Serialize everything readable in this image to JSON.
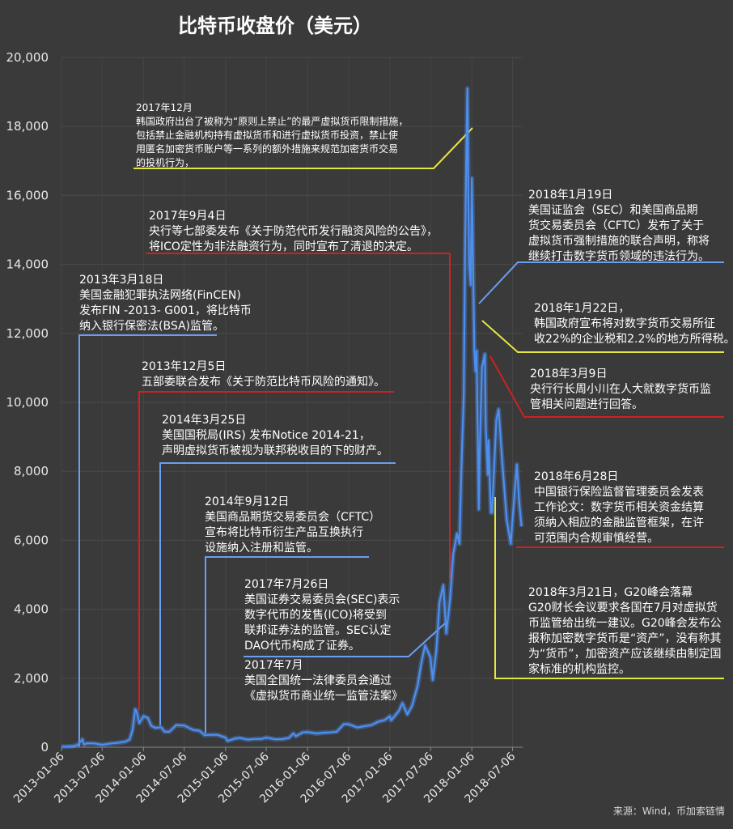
{
  "chart_data": {
    "type": "line",
    "title": "比特币收盘价（美元）",
    "source": "来源：Wind，币加索链情",
    "ylim": [
      0,
      20000
    ],
    "yticks": [
      {
        "value": 0,
        "label": "0"
      },
      {
        "value": 2000,
        "label": "2,000"
      },
      {
        "value": 4000,
        "label": "4,000"
      },
      {
        "value": 6000,
        "label": "6,000"
      },
      {
        "value": 8000,
        "label": "8,000"
      },
      {
        "value": 10000,
        "label": "10,000"
      },
      {
        "value": 12000,
        "label": "12,000"
      },
      {
        "value": 14000,
        "label": "14,000"
      },
      {
        "value": 16000,
        "label": "16,000"
      },
      {
        "value": 18000,
        "label": "18,000"
      },
      {
        "value": 20000,
        "label": "20,000"
      }
    ],
    "xlim": [
      "2013-01-06",
      "2018-08-20"
    ],
    "xticks": [
      "2013-01-06",
      "2013-07-06",
      "2014-01-06",
      "2014-07-06",
      "2015-01-06",
      "2015-07-06",
      "2016-01-06",
      "2016-07-06",
      "2017-01-06",
      "2017-07-06",
      "2018-01-06",
      "2018-07-06"
    ],
    "grid": true,
    "colors": {
      "line": "#4d8ff0",
      "blue": "#6a9ef0",
      "yellow": "#e6e640",
      "red": "#d02020"
    },
    "series": [
      {
        "x": [
          "2013-01-06",
          "2013-02-01",
          "2013-03-01",
          "2013-03-20",
          "2013-04-09",
          "2013-04-16",
          "2013-05-01",
          "2013-06-01",
          "2013-07-06",
          "2013-08-15",
          "2013-09-15",
          "2013-10-15",
          "2013-11-05",
          "2013-11-18",
          "2013-11-30",
          "2013-12-06",
          "2013-12-18",
          "2014-01-06",
          "2014-01-25",
          "2014-02-10",
          "2014-02-28",
          "2014-03-25",
          "2014-04-10",
          "2014-05-01",
          "2014-06-01",
          "2014-07-06",
          "2014-08-15",
          "2014-09-12",
          "2014-10-05",
          "2014-11-01",
          "2014-12-01",
          "2015-01-06",
          "2015-01-15",
          "2015-02-15",
          "2015-03-10",
          "2015-04-15",
          "2015-05-15",
          "2015-06-15",
          "2015-07-06",
          "2015-08-15",
          "2015-09-15",
          "2015-10-15",
          "2015-11-04",
          "2015-11-15",
          "2015-12-15",
          "2016-01-06",
          "2016-02-15",
          "2016-03-15",
          "2016-04-15",
          "2016-05-15",
          "2016-06-15",
          "2016-07-06",
          "2016-08-15",
          "2016-09-15",
          "2016-10-15",
          "2016-11-15",
          "2016-12-15",
          "2017-01-06",
          "2017-01-12",
          "2017-02-15",
          "2017-03-03",
          "2017-03-25",
          "2017-04-15",
          "2017-05-10",
          "2017-05-25",
          "2017-06-12",
          "2017-07-06",
          "2017-07-16",
          "2017-08-01",
          "2017-08-15",
          "2017-09-01",
          "2017-09-04",
          "2017-09-14",
          "2017-10-01",
          "2017-10-15",
          "2017-11-01",
          "2017-11-12",
          "2017-11-20",
          "2017-12-01",
          "2017-12-07",
          "2017-12-12",
          "2017-12-17",
          "2017-12-22",
          "2017-12-25",
          "2018-01-01",
          "2018-01-06",
          "2018-01-17",
          "2018-01-22",
          "2018-01-27",
          "2018-02-06",
          "2018-02-10",
          "2018-02-20",
          "2018-03-05",
          "2018-03-09",
          "2018-03-18",
          "2018-03-21",
          "2018-04-01",
          "2018-04-06",
          "2018-04-25",
          "2018-05-05",
          "2018-05-20",
          "2018-06-10",
          "2018-06-28",
          "2018-07-06",
          "2018-07-25",
          "2018-08-05",
          "2018-08-15"
        ],
        "values": [
          13,
          20,
          34,
          70,
          230,
          80,
          115,
          110,
          70,
          110,
          130,
          160,
          220,
          500,
          1100,
          1050,
          700,
          900,
          850,
          620,
          560,
          580,
          450,
          450,
          640,
          630,
          500,
          480,
          350,
          360,
          360,
          280,
          180,
          250,
          270,
          220,
          240,
          240,
          280,
          230,
          235,
          270,
          400,
          320,
          430,
          440,
          400,
          420,
          430,
          450,
          670,
          670,
          570,
          610,
          640,
          740,
          790,
          900,
          780,
          1050,
          1280,
          950,
          1200,
          1800,
          2400,
          2950,
          2600,
          1950,
          2800,
          4200,
          4700,
          4400,
          3300,
          4300,
          5600,
          6200,
          5900,
          8000,
          10200,
          14500,
          17000,
          19100,
          15500,
          14000,
          13400,
          16500,
          11500,
          10900,
          11500,
          6900,
          8500,
          11000,
          11400,
          9300,
          7900,
          8900,
          6800,
          6800,
          9500,
          9800,
          8400,
          6600,
          5900,
          6600,
          8200,
          7100,
          6400
        ]
      }
    ],
    "annotations": [
      {
        "color": "yellow",
        "lines": [
          "2017年12月",
          "韩国政府出台了被称为“原则上禁止”的最严虚拟货币限制措施，",
          "包括禁止金融机构持有虚拟货币和进行虚拟货币投资，禁止使",
          "用匿名加密货币账户等一系列的额外措施来规范加密货币交易",
          "的投机行为，"
        ]
      },
      {
        "color": "red",
        "lines": [
          "2017年9月4日",
          "央行等七部委发布《关于防范代币发行融资风险的公告》，",
          "将ICO定性为非法融资行为，同时宣布了清退的决定。"
        ]
      },
      {
        "color": "blue",
        "lines": [
          "2013年3月18日",
          "美国金融犯罪执法网络(FinCEN)",
          "发布FIN -2013- G001，将比特币",
          "纳入银行保密法(BSA)监管。"
        ]
      },
      {
        "color": "red",
        "lines": [
          "2013年12月5日",
          "五部委联合发布《关于防范比特币风险的通知》。"
        ]
      },
      {
        "color": "blue",
        "lines": [
          "2014年3月25日",
          "美国国税局(IRS) 发布Notice 2014-21，",
          "声明虚拟货币被视为联邦税收目的下的财产。"
        ]
      },
      {
        "color": "blue",
        "lines": [
          "2014年9月12日",
          "美国商品期货交易委员会（CFTC）",
          "宣布将比特币衍生产品互换执行",
          "设施纳入注册和监管。"
        ]
      },
      {
        "color": "blue",
        "lines": [
          "2017年7月26日",
          "美国证券交易委员会(SEC)表示",
          "数字代币的发售(ICO)将受到",
          "联邦证券法的监管。SEC认定",
          "DAO代币构成了证券。"
        ]
      },
      {
        "color": "none",
        "lines": [
          "2017年7月",
          "美国全国统一法律委员会通过",
          "《虚拟货币商业统一监管法案》"
        ]
      },
      {
        "color": "blue",
        "lines": [
          "2018年1月19日",
          "美国证监会（SEC）和美国商品期",
          "货交易委员会（CFTC）发布了关于",
          "虚拟货币强制措施的联合声明，称将",
          "继续打击数字货币领域的违法行为。"
        ]
      },
      {
        "color": "yellow",
        "lines": [
          "2018年1月22日，",
          "韩国政府宣布将对数字货币交易所征",
          "收22%的企业税和2.2%的地方所得税。"
        ]
      },
      {
        "color": "red",
        "lines": [
          "2018年3月9日",
          "央行行长周小川在人大就数字货币监",
          "管相关问题进行回答。"
        ]
      },
      {
        "color": "red",
        "lines": [
          "2018年6月28日",
          "中国银行保险监督管理委员会发表",
          "工作论文：数字货币相关资金结算",
          "须纳入相应的金融监管框架，在许",
          "可范围内合规审慎经营。"
        ]
      },
      {
        "color": "yellow",
        "lines": [
          "2018年3月21日，G20峰会落幕",
          "G20财长会议要求各国在7月对虚拟货",
          "币监管给出统一建议。G20峰会发布公",
          "报称加密数字货币是“资产”，没有称其",
          "为“货币”，加密资产应该继续由制定国",
          "家标准的机构监控。"
        ]
      }
    ]
  }
}
